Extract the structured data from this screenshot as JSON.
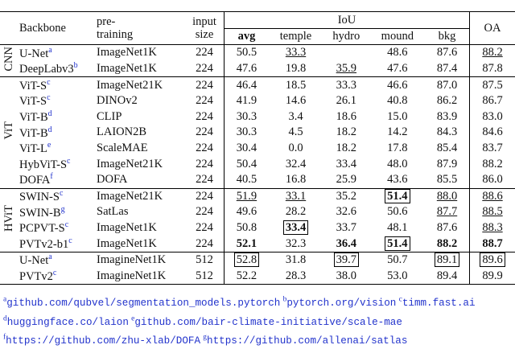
{
  "header": {
    "backbone": "Backbone",
    "pretraining": [
      "pre-",
      "training"
    ],
    "input_size": [
      "input",
      "size"
    ],
    "iou": "IoU",
    "iou_columns": [
      "avg",
      "temple",
      "hydro",
      "mound",
      "bkg"
    ],
    "oa": "OA"
  },
  "groups": [
    {
      "label": "CNN",
      "rows": [
        {
          "backbone": "U-Net",
          "sup": "a",
          "pretraining": "ImageNet1K",
          "size": "224",
          "values": [
            "50.5",
            "33.3",
            null,
            "48.6",
            "87.6",
            "88.2"
          ],
          "style": [
            null,
            "underline",
            null,
            null,
            null,
            "underline"
          ]
        },
        {
          "backbone": "DeepLabv3",
          "sup": "b",
          "pretraining": "ImageNet1K",
          "size": "224",
          "values": [
            "47.6",
            "19.8",
            "35.9",
            "47.6",
            "87.4",
            "87.8"
          ],
          "style": [
            null,
            null,
            "underline",
            null,
            null,
            null
          ]
        }
      ]
    },
    {
      "label": "ViT",
      "rows": [
        {
          "backbone": "ViT-S",
          "sup": "c",
          "pretraining": "ImageNet21K",
          "size": "224",
          "values": [
            "46.4",
            "18.5",
            "33.3",
            "46.6",
            "87.0",
            "87.5"
          ]
        },
        {
          "backbone": "ViT-S",
          "sup": "c",
          "pretraining": "DINOv2",
          "size": "224",
          "values": [
            "41.9",
            "14.6",
            "26.1",
            "40.8",
            "86.2",
            "86.7"
          ]
        },
        {
          "backbone": "ViT-B",
          "sup": "d",
          "pretraining": "CLIP",
          "size": "224",
          "values": [
            "30.3",
            "3.4",
            "18.6",
            "15.0",
            "83.9",
            "83.0"
          ]
        },
        {
          "backbone": "ViT-B",
          "sup": "d",
          "pretraining": "LAION2B",
          "size": "224",
          "values": [
            "30.3",
            "4.5",
            "18.2",
            "14.2",
            "84.3",
            "84.6"
          ]
        },
        {
          "backbone": "ViT-L",
          "sup": "e",
          "pretraining": "ScaleMAE",
          "size": "224",
          "values": [
            "30.4",
            "0.0",
            "18.2",
            "17.8",
            "85.4",
            "83.7"
          ]
        },
        {
          "backbone": "HybViT-S",
          "sup": "c",
          "pretraining": "ImageNet21K",
          "size": "224",
          "values": [
            "50.4",
            "32.4",
            "33.4",
            "48.0",
            "87.9",
            "88.2"
          ]
        },
        {
          "backbone": "DOFA",
          "sup": "f",
          "pretraining": "DOFA",
          "size": "224",
          "values": [
            "40.5",
            "16.8",
            "25.9",
            "43.6",
            "85.5",
            "86.0"
          ]
        }
      ]
    },
    {
      "label": "HViT",
      "rows": [
        {
          "backbone": "SWIN-S",
          "sup": "c",
          "pretraining": "ImageNet21K",
          "size": "224",
          "values": [
            "51.9",
            "33.1",
            "35.2",
            "51.4",
            "88.0",
            "88.6"
          ],
          "style": [
            "underline",
            "underline",
            null,
            "bold-box",
            "underline",
            "underline"
          ]
        },
        {
          "backbone": "SWIN-B",
          "sup": "g",
          "pretraining": "SatLas",
          "size": "224",
          "values": [
            "49.6",
            "28.2",
            "32.6",
            "50.6",
            "87.7",
            "88.5"
          ],
          "style": [
            null,
            null,
            null,
            null,
            "underline",
            "underline"
          ]
        },
        {
          "backbone": "PCPVT-S",
          "sup": "c",
          "pretraining": "ImageNet1K",
          "size": "224",
          "values": [
            "50.8",
            "33.4",
            "33.7",
            "48.1",
            "87.6",
            "88.3"
          ],
          "style": [
            null,
            "bold-box",
            null,
            null,
            null,
            "underline"
          ]
        },
        {
          "backbone": "PVTv2-b1",
          "sup": "c",
          "pretraining": "ImageNet1K",
          "size": "224",
          "values": [
            "52.1",
            "32.3",
            "36.4",
            "51.4",
            "88.2",
            "88.7"
          ],
          "style": [
            "bold",
            null,
            "bold",
            "bold-box",
            "bold",
            "bold"
          ]
        }
      ]
    },
    {
      "rows": [
        {
          "backbone": "U-Net",
          "sup": "a",
          "pretraining": "ImagineNet1K",
          "size": "512",
          "values": [
            "52.8",
            "31.8",
            "39.7",
            "50.7",
            "89.1",
            "89.6"
          ],
          "style": [
            "box",
            null,
            "box",
            null,
            "box",
            "box"
          ]
        },
        {
          "backbone": "PVTv2",
          "sup": "c",
          "pretraining": "ImagineNet1K",
          "size": "512",
          "values": [
            "52.2",
            "28.3",
            "38.0",
            "53.0",
            "89.4",
            "89.9"
          ]
        }
      ]
    }
  ],
  "footnotes": [
    {
      "mark": "a",
      "text": "github.com/qubvel/segmentation_models.pytorch"
    },
    {
      "mark": "b",
      "text": "pytorch.org/vision"
    },
    {
      "mark": "c",
      "text": "timm.fast.ai"
    },
    {
      "mark": "d",
      "text": "huggingface.co/laion"
    },
    {
      "mark": "e",
      "text": "github.com/bair-climate-initiative/scale-mae"
    },
    {
      "mark": "f",
      "text": "https://github.com/zhu-xlab/DOFA"
    },
    {
      "mark": "g",
      "text": "https://github.com/allenai/satlas"
    }
  ]
}
